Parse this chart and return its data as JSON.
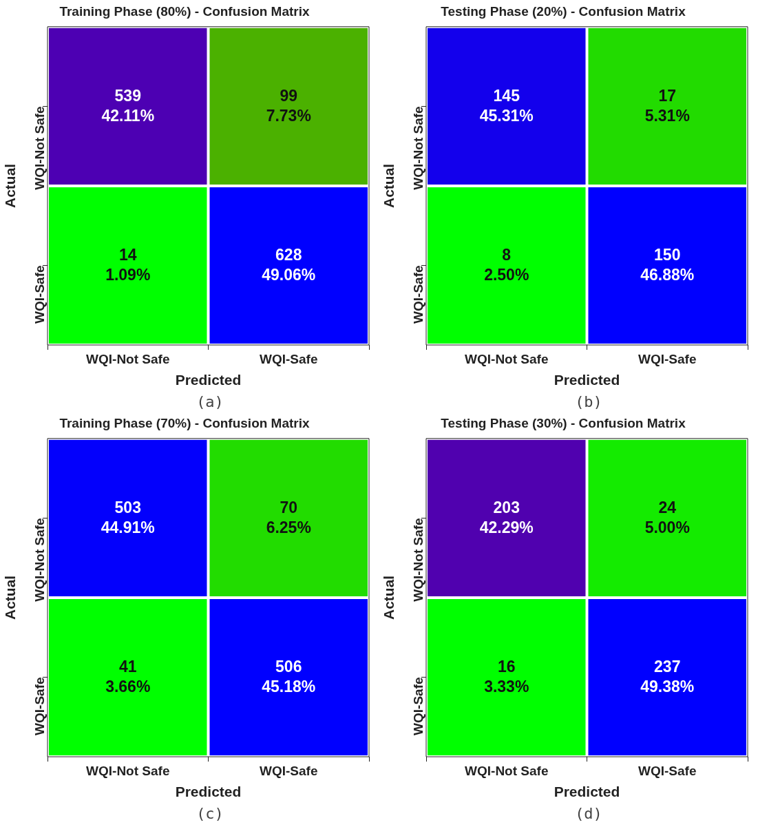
{
  "chart_data": [
    {
      "type": "heatmap",
      "title": "Training Phase (80%) - Confusion Matrix",
      "xlabel": "Predicted",
      "ylabel": "Actual",
      "categories": [
        "WQI-Not Safe",
        "WQI-Safe"
      ],
      "y_categories": [
        "WQI-Not Safe",
        "WQI-Safe"
      ],
      "cells": [
        [
          539,
          99
        ],
        [
          14,
          628
        ]
      ],
      "data_labels": true,
      "annotations": [
        "(a)",
        "42.11%",
        "7.73%",
        "1.09%",
        "49.06%"
      ]
    },
    {
      "type": "heatmap",
      "title": "Testing Phase (20%) - Confusion Matrix",
      "xlabel": "Predicted",
      "ylabel": "Actual",
      "categories": [
        "WQI-Not Safe",
        "WQI-Safe"
      ],
      "y_categories": [
        "WQI-Not Safe",
        "WQI-Safe"
      ],
      "cells": [
        [
          145,
          17
        ],
        [
          8,
          150
        ]
      ],
      "data_labels": true,
      "annotations": [
        "(b)",
        "45.31%",
        "5.31%",
        "2.50%",
        "46.88%"
      ]
    },
    {
      "type": "heatmap",
      "title": "Training Phase (70%) - Confusion Matrix",
      "xlabel": "Predicted",
      "ylabel": "Actual",
      "categories": [
        "WQI-Not Safe",
        "WQI-Safe"
      ],
      "y_categories": [
        "WQI-Not Safe",
        "WQI-Safe"
      ],
      "cells": [
        [
          503,
          70
        ],
        [
          41,
          506
        ]
      ],
      "data_labels": true,
      "annotations": [
        "(c)",
        "44.91%",
        "6.25%",
        "3.66%",
        "45.18%"
      ]
    },
    {
      "type": "heatmap",
      "title": "Testing Phase (30%) - Confusion Matrix",
      "xlabel": "Predicted",
      "ylabel": "Actual",
      "categories": [
        "WQI-Not Safe",
        "WQI-Safe"
      ],
      "y_categories": [
        "WQI-Not Safe",
        "WQI-Safe"
      ],
      "cells": [
        [
          203,
          24
        ],
        [
          16,
          237
        ]
      ],
      "data_labels": true,
      "annotations": [
        "(d)",
        "42.29%",
        "5.00%",
        "3.33%",
        "49.38%"
      ]
    }
  ]
}
